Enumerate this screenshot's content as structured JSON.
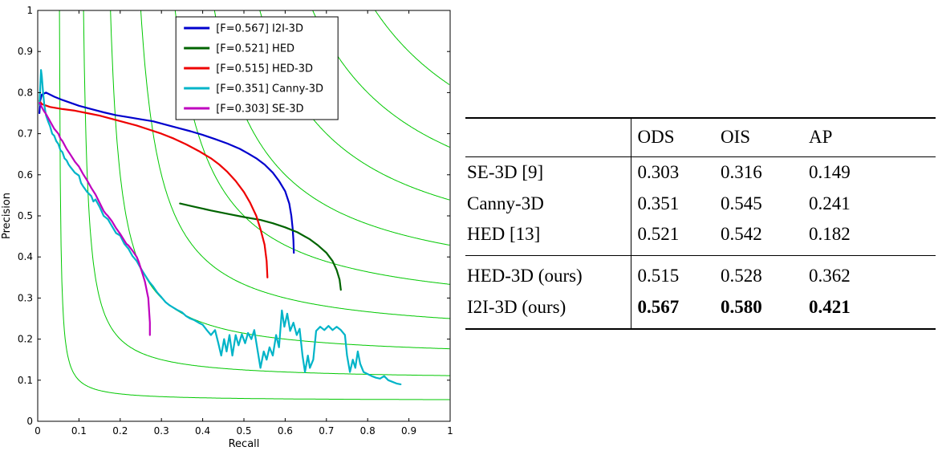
{
  "figure": {
    "background": "#ffffff"
  },
  "chart_data": {
    "type": "line",
    "title": "",
    "xlabel": "Recall",
    "ylabel": "Precision",
    "xlim": [
      0,
      1
    ],
    "ylim": [
      0,
      1
    ],
    "grid": false,
    "legend_position": "upper right",
    "x_ticks": [
      "0",
      "0.1",
      "0.2",
      "0.3",
      "0.4",
      "0.5",
      "0.6",
      "0.7",
      "0.8",
      "0.9",
      "1"
    ],
    "y_ticks": [
      "0",
      "0.1",
      "0.2",
      "0.3",
      "0.4",
      "0.5",
      "0.6",
      "0.7",
      "0.8",
      "0.9",
      "1"
    ],
    "iso_f": {
      "color": "#00c800",
      "values": [
        0.1,
        0.2,
        0.3,
        0.4,
        0.5,
        0.6,
        0.7,
        0.8,
        0.9
      ]
    },
    "series": [
      {
        "name": "I2I-3D",
        "label": "[F=0.567] I2I-3D",
        "color": "#0000cd",
        "f_score": 0.567,
        "points": [
          [
            0.004,
            0.75
          ],
          [
            0.006,
            0.78
          ],
          [
            0.01,
            0.795
          ],
          [
            0.02,
            0.8
          ],
          [
            0.04,
            0.79
          ],
          [
            0.06,
            0.782
          ],
          [
            0.08,
            0.775
          ],
          [
            0.1,
            0.768
          ],
          [
            0.13,
            0.76
          ],
          [
            0.16,
            0.752
          ],
          [
            0.19,
            0.745
          ],
          [
            0.22,
            0.74
          ],
          [
            0.25,
            0.735
          ],
          [
            0.28,
            0.73
          ],
          [
            0.31,
            0.722
          ],
          [
            0.34,
            0.714
          ],
          [
            0.37,
            0.706
          ],
          [
            0.4,
            0.697
          ],
          [
            0.43,
            0.687
          ],
          [
            0.46,
            0.676
          ],
          [
            0.49,
            0.663
          ],
          [
            0.51,
            0.652
          ],
          [
            0.53,
            0.64
          ],
          [
            0.55,
            0.625
          ],
          [
            0.57,
            0.605
          ],
          [
            0.585,
            0.585
          ],
          [
            0.6,
            0.56
          ],
          [
            0.61,
            0.53
          ],
          [
            0.615,
            0.5
          ],
          [
            0.618,
            0.47
          ],
          [
            0.62,
            0.44
          ],
          [
            0.621,
            0.41
          ]
        ]
      },
      {
        "name": "HED",
        "label": "[F=0.521] HED",
        "color": "#006400",
        "f_score": 0.521,
        "points": [
          [
            0.345,
            0.53
          ],
          [
            0.38,
            0.522
          ],
          [
            0.42,
            0.513
          ],
          [
            0.46,
            0.505
          ],
          [
            0.5,
            0.497
          ],
          [
            0.54,
            0.49
          ],
          [
            0.57,
            0.482
          ],
          [
            0.6,
            0.472
          ],
          [
            0.63,
            0.46
          ],
          [
            0.66,
            0.443
          ],
          [
            0.68,
            0.428
          ],
          [
            0.7,
            0.41
          ],
          [
            0.715,
            0.39
          ],
          [
            0.725,
            0.368
          ],
          [
            0.732,
            0.345
          ],
          [
            0.735,
            0.32
          ]
        ]
      },
      {
        "name": "HED-3D",
        "label": "[F=0.515] HED-3D",
        "color": "#ee0000",
        "f_score": 0.515,
        "points": [
          [
            0.004,
            0.78
          ],
          [
            0.01,
            0.772
          ],
          [
            0.03,
            0.765
          ],
          [
            0.06,
            0.76
          ],
          [
            0.09,
            0.756
          ],
          [
            0.12,
            0.75
          ],
          [
            0.15,
            0.744
          ],
          [
            0.18,
            0.736
          ],
          [
            0.21,
            0.728
          ],
          [
            0.24,
            0.72
          ],
          [
            0.27,
            0.71
          ],
          [
            0.3,
            0.7
          ],
          [
            0.33,
            0.688
          ],
          [
            0.36,
            0.674
          ],
          [
            0.39,
            0.658
          ],
          [
            0.42,
            0.64
          ],
          [
            0.44,
            0.625
          ],
          [
            0.46,
            0.607
          ],
          [
            0.48,
            0.585
          ],
          [
            0.5,
            0.558
          ],
          [
            0.515,
            0.532
          ],
          [
            0.53,
            0.5
          ],
          [
            0.54,
            0.468
          ],
          [
            0.55,
            0.43
          ],
          [
            0.555,
            0.39
          ],
          [
            0.557,
            0.35
          ]
        ]
      },
      {
        "name": "Canny-3D",
        "label": "[F=0.351] Canny-3D",
        "color": "#00b4c8",
        "f_score": 0.351,
        "points": [
          [
            0.004,
            0.77
          ],
          [
            0.006,
            0.81
          ],
          [
            0.008,
            0.855
          ],
          [
            0.01,
            0.84
          ],
          [
            0.013,
            0.8
          ],
          [
            0.016,
            0.77
          ],
          [
            0.02,
            0.745
          ],
          [
            0.025,
            0.73
          ],
          [
            0.03,
            0.718
          ],
          [
            0.035,
            0.7
          ],
          [
            0.04,
            0.695
          ],
          [
            0.045,
            0.682
          ],
          [
            0.05,
            0.675
          ],
          [
            0.055,
            0.66
          ],
          [
            0.06,
            0.655
          ],
          [
            0.065,
            0.64
          ],
          [
            0.07,
            0.635
          ],
          [
            0.075,
            0.625
          ],
          [
            0.08,
            0.618
          ],
          [
            0.09,
            0.605
          ],
          [
            0.1,
            0.598
          ],
          [
            0.105,
            0.58
          ],
          [
            0.11,
            0.572
          ],
          [
            0.12,
            0.558
          ],
          [
            0.13,
            0.548
          ],
          [
            0.135,
            0.535
          ],
          [
            0.14,
            0.54
          ],
          [
            0.15,
            0.522
          ],
          [
            0.16,
            0.5
          ],
          [
            0.17,
            0.492
          ],
          [
            0.18,
            0.475
          ],
          [
            0.19,
            0.458
          ],
          [
            0.2,
            0.452
          ],
          [
            0.21,
            0.432
          ],
          [
            0.22,
            0.42
          ],
          [
            0.23,
            0.402
          ],
          [
            0.24,
            0.39
          ],
          [
            0.25,
            0.372
          ],
          [
            0.26,
            0.356
          ],
          [
            0.27,
            0.34
          ],
          [
            0.28,
            0.328
          ],
          [
            0.29,
            0.313
          ],
          [
            0.3,
            0.302
          ],
          [
            0.31,
            0.29
          ],
          [
            0.32,
            0.282
          ],
          [
            0.33,
            0.276
          ],
          [
            0.34,
            0.27
          ],
          [
            0.35,
            0.265
          ],
          [
            0.36,
            0.256
          ],
          [
            0.37,
            0.25
          ],
          [
            0.38,
            0.246
          ],
          [
            0.39,
            0.24
          ],
          [
            0.4,
            0.235
          ],
          [
            0.41,
            0.222
          ],
          [
            0.42,
            0.21
          ],
          [
            0.43,
            0.222
          ],
          [
            0.438,
            0.19
          ],
          [
            0.445,
            0.16
          ],
          [
            0.452,
            0.2
          ],
          [
            0.458,
            0.17
          ],
          [
            0.465,
            0.21
          ],
          [
            0.472,
            0.16
          ],
          [
            0.48,
            0.21
          ],
          [
            0.487,
            0.185
          ],
          [
            0.495,
            0.212
          ],
          [
            0.503,
            0.19
          ],
          [
            0.51,
            0.215
          ],
          [
            0.518,
            0.2
          ],
          [
            0.525,
            0.222
          ],
          [
            0.532,
            0.18
          ],
          [
            0.54,
            0.13
          ],
          [
            0.548,
            0.17
          ],
          [
            0.555,
            0.15
          ],
          [
            0.562,
            0.18
          ],
          [
            0.57,
            0.16
          ],
          [
            0.578,
            0.21
          ],
          [
            0.585,
            0.18
          ],
          [
            0.592,
            0.27
          ],
          [
            0.598,
            0.23
          ],
          [
            0.605,
            0.262
          ],
          [
            0.612,
            0.22
          ],
          [
            0.62,
            0.24
          ],
          [
            0.628,
            0.21
          ],
          [
            0.635,
            0.225
          ],
          [
            0.642,
            0.16
          ],
          [
            0.648,
            0.12
          ],
          [
            0.655,
            0.16
          ],
          [
            0.66,
            0.13
          ],
          [
            0.668,
            0.15
          ],
          [
            0.675,
            0.22
          ],
          [
            0.685,
            0.23
          ],
          [
            0.695,
            0.222
          ],
          [
            0.705,
            0.232
          ],
          [
            0.715,
            0.222
          ],
          [
            0.725,
            0.23
          ],
          [
            0.735,
            0.222
          ],
          [
            0.745,
            0.21
          ],
          [
            0.75,
            0.16
          ],
          [
            0.757,
            0.12
          ],
          [
            0.764,
            0.15
          ],
          [
            0.77,
            0.13
          ],
          [
            0.776,
            0.17
          ],
          [
            0.782,
            0.14
          ],
          [
            0.79,
            0.12
          ],
          [
            0.8,
            0.115
          ],
          [
            0.81,
            0.11
          ],
          [
            0.82,
            0.106
          ],
          [
            0.83,
            0.104
          ],
          [
            0.84,
            0.11
          ],
          [
            0.85,
            0.1
          ],
          [
            0.86,
            0.096
          ],
          [
            0.87,
            0.092
          ],
          [
            0.88,
            0.09
          ]
        ]
      },
      {
        "name": "SE-3D",
        "label": "[F=0.303] SE-3D",
        "color": "#bf00bf",
        "f_score": 0.303,
        "points": [
          [
            0.004,
            0.775
          ],
          [
            0.008,
            0.768
          ],
          [
            0.015,
            0.755
          ],
          [
            0.02,
            0.748
          ],
          [
            0.03,
            0.73
          ],
          [
            0.04,
            0.712
          ],
          [
            0.05,
            0.7
          ],
          [
            0.055,
            0.688
          ],
          [
            0.06,
            0.682
          ],
          [
            0.07,
            0.663
          ],
          [
            0.08,
            0.648
          ],
          [
            0.09,
            0.632
          ],
          [
            0.1,
            0.62
          ],
          [
            0.11,
            0.602
          ],
          [
            0.12,
            0.586
          ],
          [
            0.13,
            0.568
          ],
          [
            0.14,
            0.552
          ],
          [
            0.15,
            0.532
          ],
          [
            0.16,
            0.512
          ],
          [
            0.165,
            0.505
          ],
          [
            0.17,
            0.5
          ],
          [
            0.18,
            0.487
          ],
          [
            0.19,
            0.47
          ],
          [
            0.2,
            0.456
          ],
          [
            0.21,
            0.44
          ],
          [
            0.215,
            0.432
          ],
          [
            0.22,
            0.428
          ],
          [
            0.23,
            0.415
          ],
          [
            0.24,
            0.4
          ],
          [
            0.245,
            0.388
          ],
          [
            0.25,
            0.372
          ],
          [
            0.255,
            0.356
          ],
          [
            0.26,
            0.34
          ],
          [
            0.263,
            0.325
          ],
          [
            0.266,
            0.31
          ],
          [
            0.268,
            0.3
          ],
          [
            0.269,
            0.285
          ],
          [
            0.27,
            0.27
          ],
          [
            0.271,
            0.255
          ],
          [
            0.272,
            0.24
          ],
          [
            0.272,
            0.225
          ],
          [
            0.272,
            0.21
          ]
        ]
      }
    ]
  },
  "table": {
    "headers": [
      "ODS",
      "OIS",
      "AP"
    ],
    "rows": [
      {
        "name": "SE-3D [9]",
        "ods": "0.303",
        "ois": "0.316",
        "ap": "0.149"
      },
      {
        "name": "Canny-3D",
        "ods": "0.351",
        "ois": "0.545",
        "ap": "0.241"
      },
      {
        "name": "HED [13]",
        "ods": "0.521",
        "ois": "0.542",
        "ap": "0.182"
      },
      {
        "name": "HED-3D (ours)",
        "ods": "0.515",
        "ois": "0.528",
        "ap": "0.362"
      },
      {
        "name": "I2I-3D (ours)",
        "ods": "0.567",
        "ois": "0.580",
        "ap": "0.421",
        "bold": true
      }
    ]
  }
}
